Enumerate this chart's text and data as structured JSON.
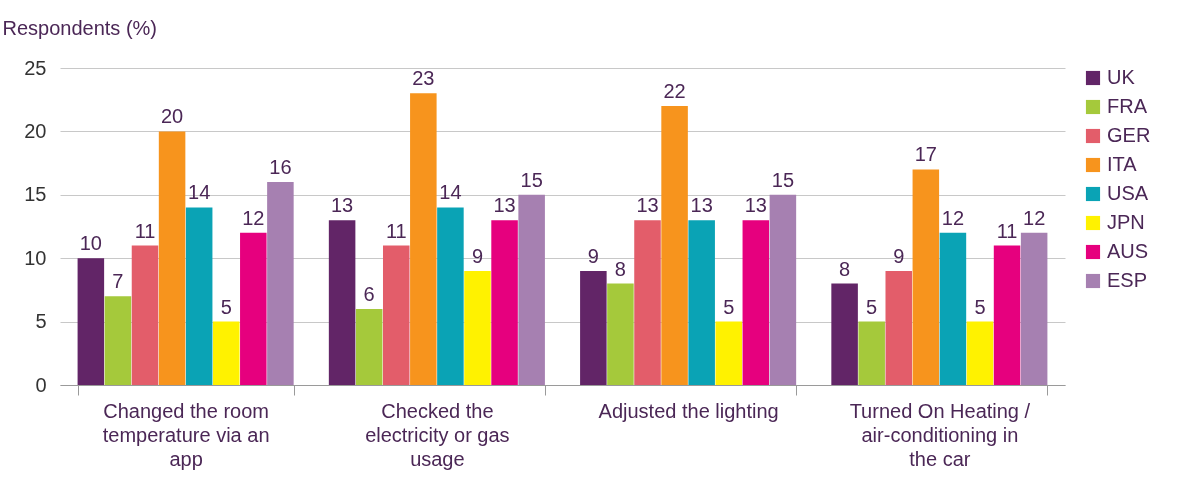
{
  "chart_data": {
    "type": "bar",
    "ylabel": "Respondents (%)",
    "categories": [
      "Changed the room temperature via an app",
      "Checked the electricity or gas usage",
      "Adjusted the lighting",
      "Turned On Heating / air-conditioning in the car"
    ],
    "series": [
      {
        "name": "UK",
        "color": "#622567",
        "values": [
          10,
          13,
          9,
          8
        ]
      },
      {
        "name": "FRA",
        "color": "#a5c93b",
        "values": [
          7,
          6,
          8,
          5
        ]
      },
      {
        "name": "GER",
        "color": "#e35d6a",
        "values": [
          11,
          11,
          13,
          9
        ]
      },
      {
        "name": "ITA",
        "color": "#f7941d",
        "values": [
          20,
          23,
          22,
          17
        ]
      },
      {
        "name": "USA",
        "color": "#0aa3b5",
        "values": [
          14,
          14,
          13,
          12
        ]
      },
      {
        "name": "JPN",
        "color": "#fff200",
        "values": [
          5,
          9,
          5,
          5
        ]
      },
      {
        "name": "AUS",
        "color": "#e6007e",
        "values": [
          12,
          13,
          13,
          11
        ]
      },
      {
        "name": "ESP",
        "color": "#a680b1",
        "values": [
          16,
          15,
          15,
          12
        ]
      }
    ],
    "ylim": [
      0,
      25
    ],
    "yticks": [
      0,
      5,
      10,
      15,
      20,
      25
    ],
    "grid": "y",
    "legend": "right",
    "data_labels": true
  }
}
